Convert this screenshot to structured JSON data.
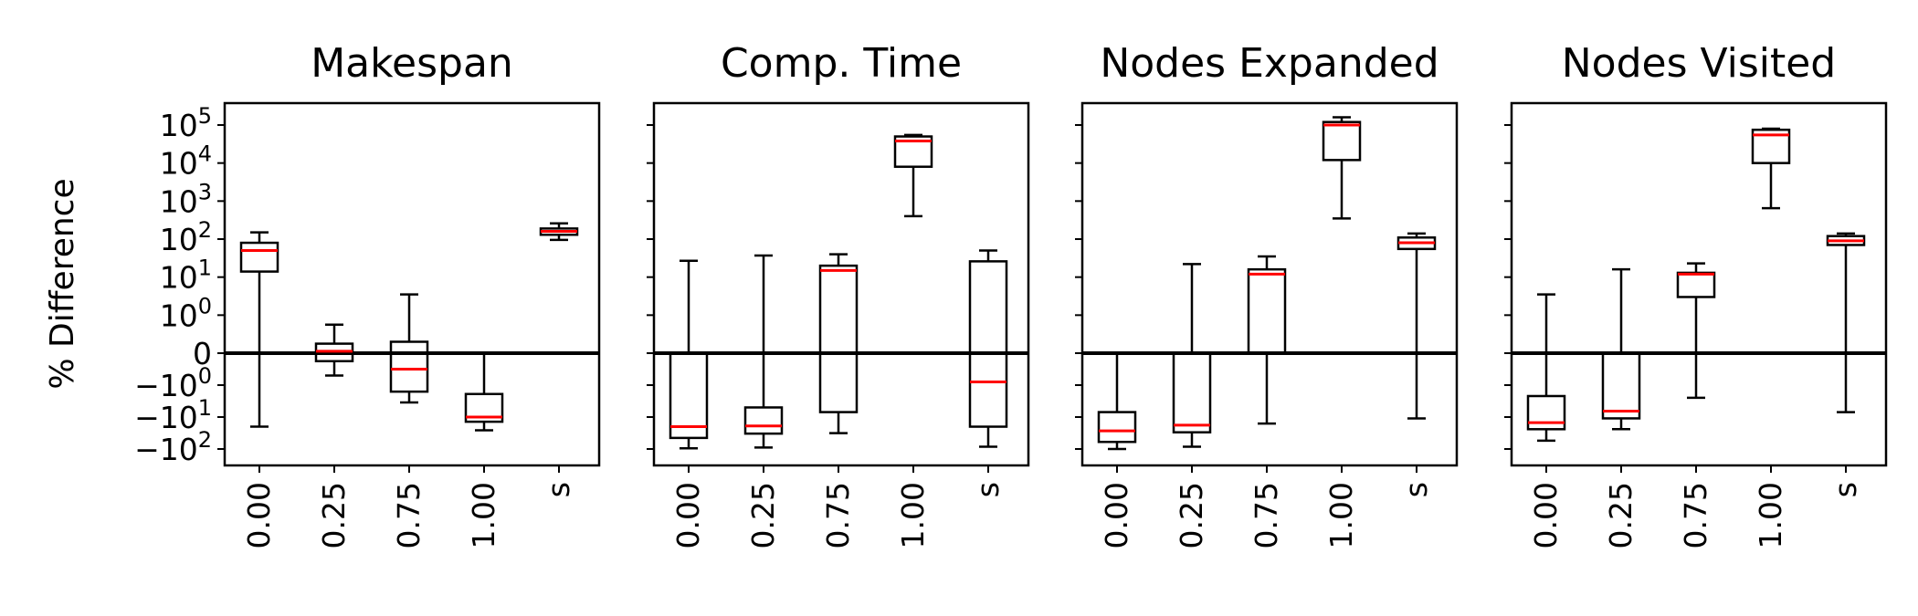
{
  "ylabel": "% Difference",
  "colors": {
    "median": "#ff0000",
    "box": "#000000",
    "zero_line": "#000000"
  },
  "chart_data": [
    {
      "type": "box",
      "title": "Makespan",
      "ylabel": "% Difference",
      "yscale": "symlog",
      "categories": [
        "0.00",
        "0.25",
        "0.75",
        "1.00",
        "s"
      ],
      "boxes": [
        {
          "whislo": -20,
          "q1": 14,
          "med": 50,
          "q3": 80,
          "whishi": 150
        },
        {
          "whislo": -0.7,
          "q1": -0.25,
          "med": 0.05,
          "q3": 0.25,
          "whishi": 0.75
        },
        {
          "whislo": -3.5,
          "q1": -1.6,
          "med": -0.5,
          "q3": 0.3,
          "whishi": 3.5
        },
        {
          "whislo": -26,
          "q1": -14,
          "med": -10,
          "q3": -1.9,
          "whishi": 0
        },
        {
          "whislo": 95,
          "q1": 130,
          "med": 160,
          "q3": 190,
          "whishi": 260
        }
      ]
    },
    {
      "type": "box",
      "title": "Comp. Time",
      "yscale": "symlog",
      "categories": [
        "0.00",
        "0.25",
        "0.75",
        "1.00",
        "s"
      ],
      "boxes": [
        {
          "whislo": -95,
          "q1": -45,
          "med": -20,
          "q3": 0,
          "whishi": 27
        },
        {
          "whislo": -90,
          "q1": -33,
          "med": -19,
          "q3": -5,
          "whishi": 37
        },
        {
          "whislo": -32,
          "q1": -7,
          "med": 15,
          "q3": 20,
          "whishi": 40
        },
        {
          "whislo": 400,
          "q1": 8000,
          "med": 38000,
          "q3": 50000,
          "whishi": 55000
        },
        {
          "whislo": -85,
          "q1": -20,
          "med": -0.9,
          "q3": 26,
          "whishi": 50
        }
      ]
    },
    {
      "type": "box",
      "title": "Nodes Expanded",
      "yscale": "symlog",
      "categories": [
        "0.00",
        "0.25",
        "0.75",
        "1.00",
        "s"
      ],
      "boxes": [
        {
          "whislo": -100,
          "q1": -60,
          "med": -27,
          "q3": -7,
          "whishi": 0
        },
        {
          "whislo": -85,
          "q1": -30,
          "med": -18,
          "q3": 0,
          "whishi": 22
        },
        {
          "whislo": -16,
          "q1": 0,
          "med": 12,
          "q3": 16,
          "whishi": 35
        },
        {
          "whislo": 350,
          "q1": 12000,
          "med": 100000,
          "q3": 120000,
          "whishi": 160000
        },
        {
          "whislo": -11,
          "q1": 55,
          "med": 80,
          "q3": 110,
          "whishi": 140
        }
      ]
    },
    {
      "type": "box",
      "title": "Nodes Visited",
      "yscale": "symlog",
      "categories": [
        "0.00",
        "0.25",
        "0.75",
        "1.00",
        "s"
      ],
      "boxes": [
        {
          "whislo": -55,
          "q1": -24,
          "med": -15,
          "q3": -2.2,
          "whishi": 3.5
        },
        {
          "whislo": -24,
          "q1": -11,
          "med": -6.5,
          "q3": 0,
          "whishi": 16
        },
        {
          "whislo": -2.5,
          "q1": 3,
          "med": 12,
          "q3": 13,
          "whishi": 23
        },
        {
          "whislo": 650,
          "q1": 10000,
          "med": 55000,
          "q3": 75000,
          "whishi": 80000
        },
        {
          "whislo": -7,
          "q1": 70,
          "med": 90,
          "q3": 120,
          "whishi": 140
        }
      ]
    }
  ],
  "y_ticks": [
    {
      "value": 100000,
      "label": "10^5"
    },
    {
      "value": 10000,
      "label": "10^4"
    },
    {
      "value": 1000,
      "label": "10^3"
    },
    {
      "value": 100,
      "label": "10^2"
    },
    {
      "value": 10,
      "label": "10^1"
    },
    {
      "value": 1,
      "label": "10^0"
    },
    {
      "value": 0,
      "label": "0"
    },
    {
      "value": -1,
      "label": "−10^0"
    },
    {
      "value": -10,
      "label": "−10^1"
    },
    {
      "value": -100,
      "label": "−10^2"
    }
  ]
}
